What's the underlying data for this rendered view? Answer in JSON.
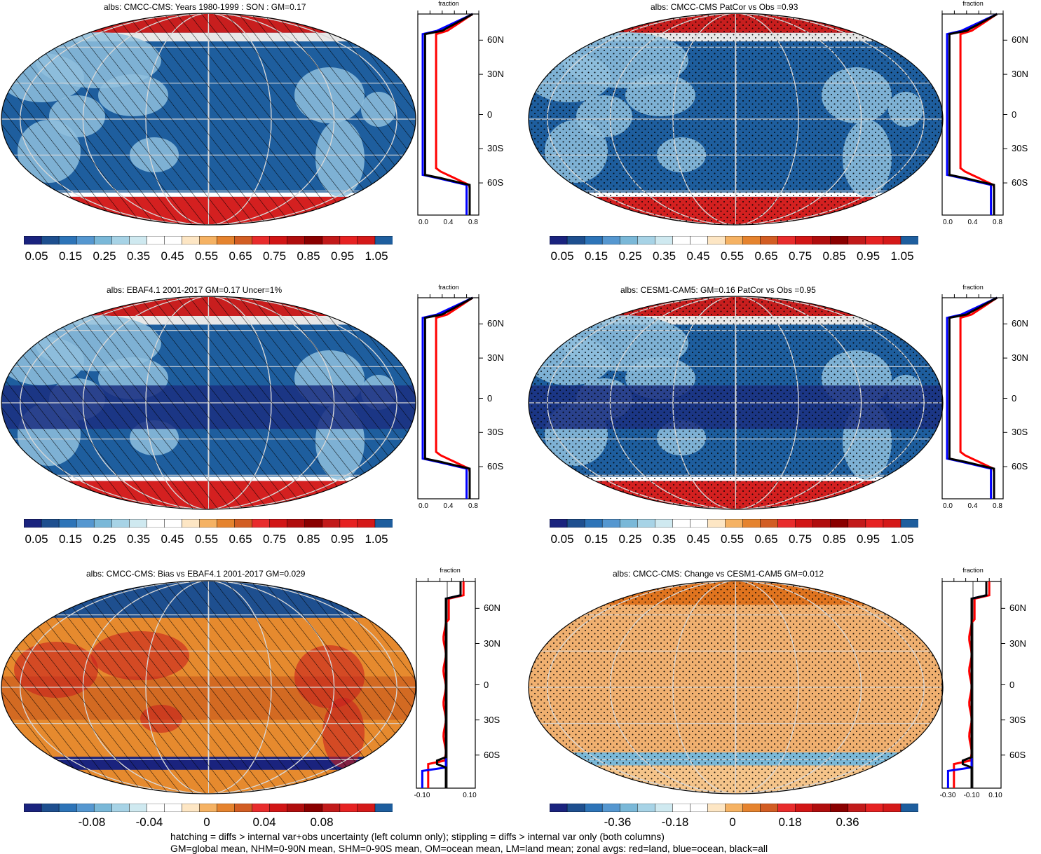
{
  "panels": [
    {
      "id": "p1",
      "title": "albs: CMCC-CMS: Years 1980-1999 : SON : GM=0.17",
      "pattern": "hatch",
      "fill": "#1e5e9e"
    },
    {
      "id": "p2",
      "title": "albs: CMCC-CMS PatCor vs Obs =0.93",
      "pattern": "dots",
      "fill": "#1e5e9e"
    },
    {
      "id": "p3",
      "title": "albs: EBAF4.1 2001-2017 GM=0.17 Uncer=1%",
      "pattern": "hatch",
      "fill": "#1e5e9e"
    },
    {
      "id": "p4",
      "title": "albs: CESM1-CAM5: GM=0.16 PatCor vs Obs =0.95",
      "pattern": "dots",
      "fill": "#1e5e9e"
    },
    {
      "id": "p5",
      "title": "albs: CMCC-CMS: Bias vs EBAF4.1 2001-2017  GM=0.029",
      "pattern": "hatch",
      "fill": "#e68a2e"
    },
    {
      "id": "p6",
      "title": "albs: CMCC-CMS: Change vs CESM1-CAM5 GM=0.012",
      "pattern": "dots",
      "fill": "#f0b070"
    }
  ],
  "colorbars": {
    "abs_labels": [
      "0.05",
      "0.15",
      "0.25",
      "0.35",
      "0.45",
      "0.55",
      "0.65",
      "0.75",
      "0.85",
      "0.95",
      "1.05"
    ],
    "bias_labels": [
      "-0.08",
      "-0.04",
      "0",
      "0.04",
      "0.08"
    ],
    "change_labels": [
      "-0.36",
      "-0.18",
      "0",
      "0.18",
      "0.36"
    ],
    "abs_colors": [
      "#1a237e",
      "#1e4f8f",
      "#2d74b8",
      "#5597d0",
      "#7ab8d8",
      "#a7d3e6",
      "#cfe9f0",
      "#ffffff",
      "#ffffff",
      "#fde6c4",
      "#f5b263",
      "#e5832e",
      "#d25d23",
      "#e82c2c",
      "#d11515",
      "#b00d0d",
      "#8a0000",
      "#c21a1a",
      "#e62222",
      "#d41919",
      "#1e5e9e"
    ],
    "diff_colors": [
      "#1a237e",
      "#1e4f8f",
      "#2d74b8",
      "#5597d0",
      "#7ab8d8",
      "#a7d3e6",
      "#cfe9f0",
      "#ffffff",
      "#ffffff",
      "#fde6c4",
      "#f5b263",
      "#e5832e",
      "#d25d23",
      "#e82c2c",
      "#d11515",
      "#b00d0d",
      "#8a0000",
      "#c21a1a",
      "#e62222",
      "#d41919",
      "#1e5e9e"
    ]
  },
  "zonal": {
    "axis_title": "fraction",
    "lat_labels": [
      "60N",
      "30N",
      "0",
      "30S",
      "60S"
    ],
    "abs_x_labels": [
      "0.0",
      "0.4",
      "0.8"
    ],
    "bias_x_labels": [
      "-0.10",
      "0.10"
    ],
    "change_x_labels": [
      "-0.30",
      "-0.10",
      "0.10"
    ],
    "line_colors": {
      "land": "#ff0000",
      "ocean": "#0000ff",
      "all": "#000000"
    }
  },
  "footer": {
    "line1": "hatching = diffs > internal var+obs uncertainty (left column only); stippling = diffs > internal var only (both columns)",
    "line2": "GM=global mean, NHM=0-90N mean, SHM=0-90S mean, OM=ocean mean, LM=land mean; zonal avgs: red=land, blue=ocean, black=all"
  }
}
